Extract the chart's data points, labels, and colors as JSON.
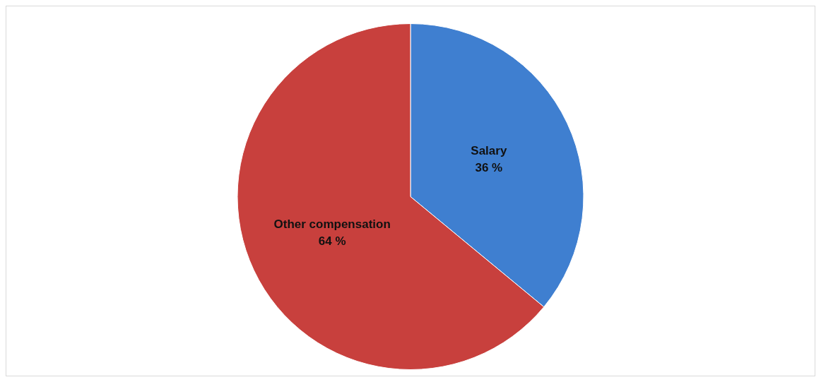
{
  "chart_data": {
    "type": "pie",
    "categories": [
      "Salary",
      "Other compensation"
    ],
    "values": [
      36,
      64
    ],
    "colors": [
      "#3f7fd0",
      "#c8403d"
    ],
    "value_labels": [
      "36 %",
      "64 %"
    ],
    "legend": false
  }
}
